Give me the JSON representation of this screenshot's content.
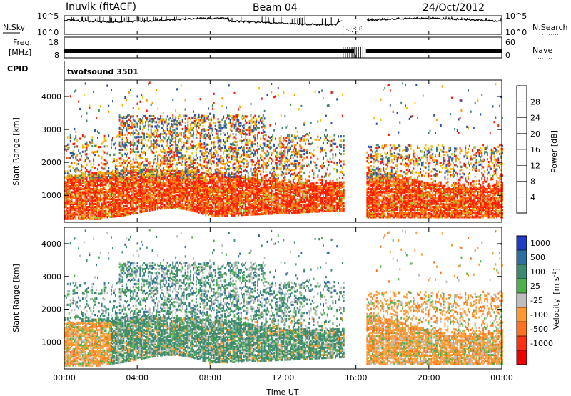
{
  "header": {
    "station": "Inuvik (fitACF)",
    "beam": "Beam 04",
    "date": "24/Oct/2012"
  },
  "noise_panel": {
    "left_label": "N.Sky",
    "right_label": "N.Search",
    "left_ticks": [
      "10^5",
      "10^0"
    ],
    "right_ticks": [
      "10^5",
      "10^0"
    ]
  },
  "freq_panel": {
    "left_label_line1": "Freq.",
    "left_label_line2": "[MHz]",
    "right_label": "Nave",
    "left_ticks": [
      "18",
      "8"
    ],
    "right_ticks": [
      "60",
      "0"
    ]
  },
  "cpid_panel": {
    "label": "CPID",
    "value": "twofsound 3501"
  },
  "colors": {
    "gap_start_hour": 15.3,
    "gap_end_hour": 16.55
  },
  "chart_data": [
    {
      "type": "heatmap",
      "title": "",
      "xlabel": "Time UT",
      "ylabel": "Slant Range [km]",
      "xlim": [
        0,
        24
      ],
      "ylim": [
        180,
        4500
      ],
      "x_ticks": [
        "00:00",
        "04:00",
        "08:00",
        "12:00",
        "16:00",
        "20:00",
        "00:00"
      ],
      "y_ticks": [
        1000,
        2000,
        3000,
        4000
      ],
      "colorbar": {
        "label": "Power [dB]",
        "range": [
          0,
          32
        ],
        "tick_labels": [
          "4",
          "8",
          "12",
          "16",
          "20",
          "24",
          "28"
        ],
        "colors": [
          "#1520ff",
          "#2d4fa8",
          "#3f8a6a",
          "#9bcf3a",
          "#f0c000",
          "#ff9a00",
          "#ff6a00",
          "#ff1a00"
        ]
      },
      "data_gap": [
        15.3,
        16.55
      ]
    },
    {
      "type": "heatmap",
      "title": "",
      "xlabel": "Time UT",
      "ylabel": "Slant Range [km]",
      "xlim": [
        0,
        24
      ],
      "ylim": [
        180,
        4500
      ],
      "x_ticks": [
        "00:00",
        "04:00",
        "08:00",
        "12:00",
        "16:00",
        "20:00",
        "00:00"
      ],
      "y_ticks": [
        1000,
        2000,
        3000,
        4000
      ],
      "colorbar": {
        "label_main": "Velocity",
        "label_unit_a": "[m s",
        "label_unit_b": "-1",
        "label_unit_c": "]",
        "tick_labels": [
          "1000",
          "500",
          "100",
          "25",
          "-25",
          "-100",
          "-500",
          "-1000"
        ],
        "colors": [
          "#1e3cc8",
          "#2e6ea0",
          "#3e8a70",
          "#4eb04a",
          "#bdbdbd",
          "#ff9a30",
          "#ff7020",
          "#ff3010",
          "#ee0000"
        ]
      },
      "data_gap": [
        15.3,
        16.55
      ]
    }
  ]
}
